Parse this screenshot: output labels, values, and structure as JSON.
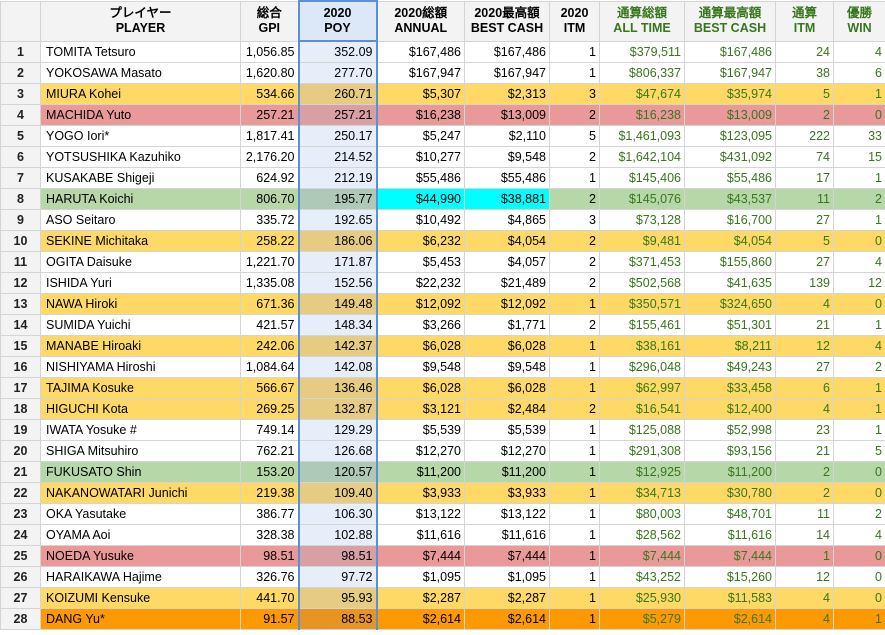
{
  "headers": [
    {
      "top": "",
      "bottom": ""
    },
    {
      "top": "プレイヤー",
      "bottom": "PLAYER"
    },
    {
      "top": "総合",
      "bottom": "GPI"
    },
    {
      "top": "2020",
      "bottom": "POY"
    },
    {
      "top": "2020総額",
      "bottom": "ANNUAL"
    },
    {
      "top": "2020最高額",
      "bottom": "BEST CASH"
    },
    {
      "top": "2020",
      "bottom": "ITM"
    },
    {
      "top": "通算総額",
      "bottom": "ALL TIME"
    },
    {
      "top": "通算最高額",
      "bottom": "BEST CASH"
    },
    {
      "top": "通算",
      "bottom": "ITM"
    },
    {
      "top": "優勝",
      "bottom": "WIN"
    }
  ],
  "colors": {
    "white": "#ffffff",
    "yellow": "#ffd966",
    "red": "#ea9999",
    "lightgreen": "#b6d7a8",
    "orange": "#f6b26b",
    "dorange": "#ff9900",
    "cyan": "#00ffff",
    "green_text": "#38761d",
    "poy_border": "#5b8fd6"
  },
  "rows": [
    {
      "n": "1",
      "color": "white",
      "cells": [
        "TOMITA Tetsuro",
        "1,056.85",
        "352.09",
        "$167,486",
        "$167,486",
        "1",
        "$379,511",
        "$167,486",
        "24",
        "4"
      ]
    },
    {
      "n": "2",
      "color": "white",
      "cells": [
        "YOKOSAWA Masato",
        "1,620.80",
        "277.70",
        "$167,947",
        "$167,947",
        "1",
        "$806,337",
        "$167,947",
        "38",
        "6"
      ]
    },
    {
      "n": "3",
      "color": "yellow",
      "cells": [
        "MIURA Kohei",
        "534.66",
        "260.71",
        "$5,307",
        "$2,313",
        "3",
        "$47,674",
        "$35,974",
        "5",
        "1"
      ]
    },
    {
      "n": "4",
      "color": "red",
      "cells": [
        "MACHIDA Yuto",
        "257.21",
        "257.21",
        "$16,238",
        "$13,009",
        "2",
        "$16,238",
        "$13,009",
        "2",
        "0"
      ]
    },
    {
      "n": "5",
      "color": "white",
      "cells": [
        "YOGO Iori*",
        "1,817.41",
        "250.17",
        "$5,247",
        "$2,110",
        "5",
        "$1,461,093",
        "$123,095",
        "222",
        "33"
      ]
    },
    {
      "n": "6",
      "color": "white",
      "cells": [
        "YOTSUSHIKA Kazuhiko",
        "2,176.20",
        "214.52",
        "$10,277",
        "$9,548",
        "2",
        "$1,642,104",
        "$431,092",
        "74",
        "15"
      ]
    },
    {
      "n": "7",
      "color": "white",
      "cells": [
        "KUSAKABE Shigeji",
        "624.92",
        "212.19",
        "$55,486",
        "$55,486",
        "1",
        "$145,406",
        "$55,486",
        "17",
        "1"
      ]
    },
    {
      "n": "8",
      "color": "lightgreen",
      "cyan": [
        3,
        4
      ],
      "cells": [
        "HARUTA Koichi",
        "806.70",
        "195.77",
        "$44,990",
        "$38,881",
        "2",
        "$145,076",
        "$43,537",
        "11",
        "2"
      ]
    },
    {
      "n": "9",
      "color": "white",
      "cells": [
        "ASO Seitaro",
        "335.72",
        "192.65",
        "$10,492",
        "$4,865",
        "3",
        "$73,128",
        "$16,700",
        "27",
        "1"
      ]
    },
    {
      "n": "10",
      "color": "yellow",
      "cells": [
        "SEKINE Michitaka",
        "258.22",
        "186.06",
        "$6,232",
        "$4,054",
        "2",
        "$9,481",
        "$4,054",
        "5",
        "0"
      ]
    },
    {
      "n": "11",
      "color": "white",
      "cells": [
        "OGITA Daisuke",
        "1,221.70",
        "171.87",
        "$5,453",
        "$4,057",
        "2",
        "$371,453",
        "$155,860",
        "27",
        "4"
      ]
    },
    {
      "n": "12",
      "color": "white",
      "cells": [
        "ISHIDA Yuri",
        "1,335.08",
        "152.56",
        "$22,232",
        "$21,489",
        "2",
        "$502,568",
        "$41,635",
        "139",
        "12"
      ]
    },
    {
      "n": "13",
      "color": "yellow",
      "cells": [
        "NAWA Hiroki",
        "671.36",
        "149.48",
        "$12,092",
        "$12,092",
        "1",
        "$350,571",
        "$324,650",
        "4",
        "0"
      ]
    },
    {
      "n": "14",
      "color": "white",
      "cells": [
        "SUMIDA Yuichi",
        "421.57",
        "148.34",
        "$3,266",
        "$1,771",
        "2",
        "$155,461",
        "$51,301",
        "21",
        "1"
      ]
    },
    {
      "n": "15",
      "color": "yellow",
      "cells": [
        "MANABE Hiroaki",
        "242.06",
        "142.37",
        "$6,028",
        "$6,028",
        "1",
        "$38,161",
        "$8,211",
        "12",
        "4"
      ]
    },
    {
      "n": "16",
      "color": "white",
      "cells": [
        "NISHIYAMA Hiroshi",
        "1,084.64",
        "142.08",
        "$9,548",
        "$9,548",
        "1",
        "$296,048",
        "$49,243",
        "27",
        "2"
      ]
    },
    {
      "n": "17",
      "color": "yellow",
      "cells": [
        "TAJIMA Kosuke",
        "566.67",
        "136.46",
        "$6,028",
        "$6,028",
        "1",
        "$62,997",
        "$33,458",
        "6",
        "1"
      ]
    },
    {
      "n": "18",
      "color": "yellow",
      "cells": [
        "HIGUCHI Kota",
        "269.25",
        "132.87",
        "$3,121",
        "$2,484",
        "2",
        "$16,541",
        "$12,400",
        "4",
        "1"
      ]
    },
    {
      "n": "19",
      "color": "white",
      "cells": [
        "IWATA Yosuke #",
        "749.14",
        "129.29",
        "$5,539",
        "$5,539",
        "1",
        "$125,088",
        "$52,998",
        "23",
        "1"
      ]
    },
    {
      "n": "20",
      "color": "white",
      "cells": [
        "SHIGA Mitsuhiro",
        "762.21",
        "126.68",
        "$12,270",
        "$12,270",
        "1",
        "$291,308",
        "$93,156",
        "21",
        "5"
      ]
    },
    {
      "n": "21",
      "color": "lightgreen",
      "cells": [
        "FUKUSATO Shin",
        "153.20",
        "120.57",
        "$11,200",
        "$11,200",
        "1",
        "$12,925",
        "$11,200",
        "2",
        "0"
      ]
    },
    {
      "n": "22",
      "color": "yellow",
      "cells": [
        "NAKANOWATARI Junichi",
        "219.38",
        "109.40",
        "$3,933",
        "$3,933",
        "1",
        "$34,713",
        "$30,780",
        "2",
        "0"
      ]
    },
    {
      "n": "23",
      "color": "white",
      "cells": [
        "OKA Yasutake",
        "386.77",
        "106.30",
        "$13,122",
        "$13,122",
        "1",
        "$80,003",
        "$48,701",
        "11",
        "2"
      ]
    },
    {
      "n": "24",
      "color": "white",
      "cells": [
        "OYAMA Aoi",
        "328.38",
        "102.88",
        "$11,616",
        "$11,616",
        "1",
        "$28,562",
        "$11,616",
        "14",
        "4"
      ]
    },
    {
      "n": "25",
      "color": "red",
      "cells": [
        "NOEDA Yusuke",
        "98.51",
        "98.51",
        "$7,444",
        "$7,444",
        "1",
        "$7,444",
        "$7,444",
        "1",
        "0"
      ]
    },
    {
      "n": "26",
      "color": "white",
      "cells": [
        "HARAIKAWA Hajime",
        "326.76",
        "97.72",
        "$1,095",
        "$1,095",
        "1",
        "$43,252",
        "$15,260",
        "12",
        "0"
      ]
    },
    {
      "n": "27",
      "color": "yellow",
      "cells": [
        "KOIZUMI Kensuke",
        "441.70",
        "95.93",
        "$2,287",
        "$2,287",
        "1",
        "$25,930",
        "$11,583",
        "4",
        "0"
      ]
    },
    {
      "n": "28",
      "color": "dorange",
      "cells": [
        "DANG Yu*",
        "91.57",
        "88.53",
        "$2,614",
        "$2,614",
        "1",
        "$5,279",
        "$2,614",
        "4",
        "1"
      ]
    }
  ]
}
